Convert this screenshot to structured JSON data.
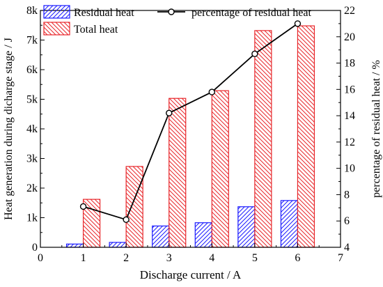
{
  "chart_data": {
    "type": "bar",
    "title": "",
    "xlabel": "Discharge current / A",
    "ylabel": "Heat generation during dicharge stage / J",
    "y2label": "percentage of residual heat / %",
    "xlim": [
      0,
      7
    ],
    "xticks": [
      "0",
      "1",
      "2",
      "3",
      "4",
      "5",
      "6",
      "7"
    ],
    "ylim": [
      0,
      8000
    ],
    "yticks": [
      "0",
      "1k",
      "2k",
      "3k",
      "4k",
      "5k",
      "6k",
      "7k",
      "8k"
    ],
    "y2lim": [
      4,
      22
    ],
    "y2ticks": [
      "4",
      "6",
      "8",
      "10",
      "12",
      "14",
      "16",
      "18",
      "20",
      "22"
    ],
    "legend_position": "top",
    "x": [
      1,
      2,
      3,
      4,
      5,
      6
    ],
    "series": [
      {
        "name": "Residual heat",
        "type": "bar",
        "axis": "left",
        "color": "#1a1aff",
        "hatch": "forward-diagonal",
        "values": [
          110,
          165,
          720,
          830,
          1370,
          1580
        ]
      },
      {
        "name": "Total heat",
        "type": "bar",
        "axis": "left",
        "color": "#e8262a",
        "hatch": "back-diagonal",
        "values": [
          1620,
          2730,
          5030,
          5290,
          7320,
          7480
        ]
      },
      {
        "name": "percentage of residual heat",
        "type": "line",
        "axis": "right",
        "color": "#000000",
        "marker": "open-circle",
        "values": [
          7.1,
          6.1,
          14.2,
          15.8,
          18.7,
          21.0
        ]
      }
    ]
  }
}
